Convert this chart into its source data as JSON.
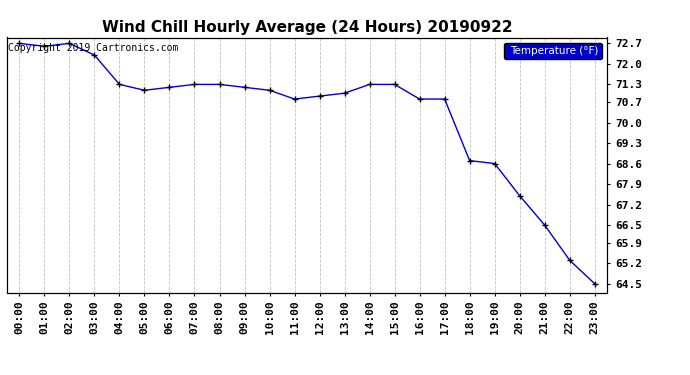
{
  "title": "Wind Chill Hourly Average (24 Hours) 20190922",
  "copyright": "Copyright 2019 Cartronics.com",
  "legend_label": "Temperature (°F)",
  "hours": [
    "00:00",
    "01:00",
    "02:00",
    "03:00",
    "04:00",
    "05:00",
    "06:00",
    "07:00",
    "08:00",
    "09:00",
    "10:00",
    "11:00",
    "12:00",
    "13:00",
    "14:00",
    "15:00",
    "16:00",
    "17:00",
    "18:00",
    "19:00",
    "20:00",
    "21:00",
    "22:00",
    "23:00"
  ],
  "values": [
    72.7,
    72.6,
    72.7,
    72.3,
    71.3,
    71.1,
    71.2,
    71.3,
    71.3,
    71.2,
    71.1,
    70.8,
    70.9,
    71.0,
    71.3,
    71.3,
    70.8,
    70.8,
    68.7,
    68.6,
    67.5,
    66.5,
    65.3,
    64.5
  ],
  "ylim_min": 64.5,
  "ylim_max": 72.7,
  "yticks": [
    72.7,
    72.0,
    71.3,
    70.7,
    70.0,
    69.3,
    68.6,
    67.9,
    67.2,
    66.5,
    65.9,
    65.2,
    64.5
  ],
  "ytick_labels": [
    "72.7",
    "72.0",
    "71.3",
    "70.7",
    "70.0",
    "69.3",
    "68.6",
    "67.9",
    "67.2",
    "66.5",
    "65.9",
    "65.2",
    "64.5"
  ],
  "line_color": "#0000cc",
  "marker_color": "#000000",
  "bg_color": "#ffffff",
  "grid_color": "#bbbbbb",
  "title_color": "#000000",
  "legend_bg": "#0000cc",
  "legend_text_color": "#ffffff",
  "title_fontsize": 11,
  "tick_fontsize": 8,
  "copyright_fontsize": 7
}
